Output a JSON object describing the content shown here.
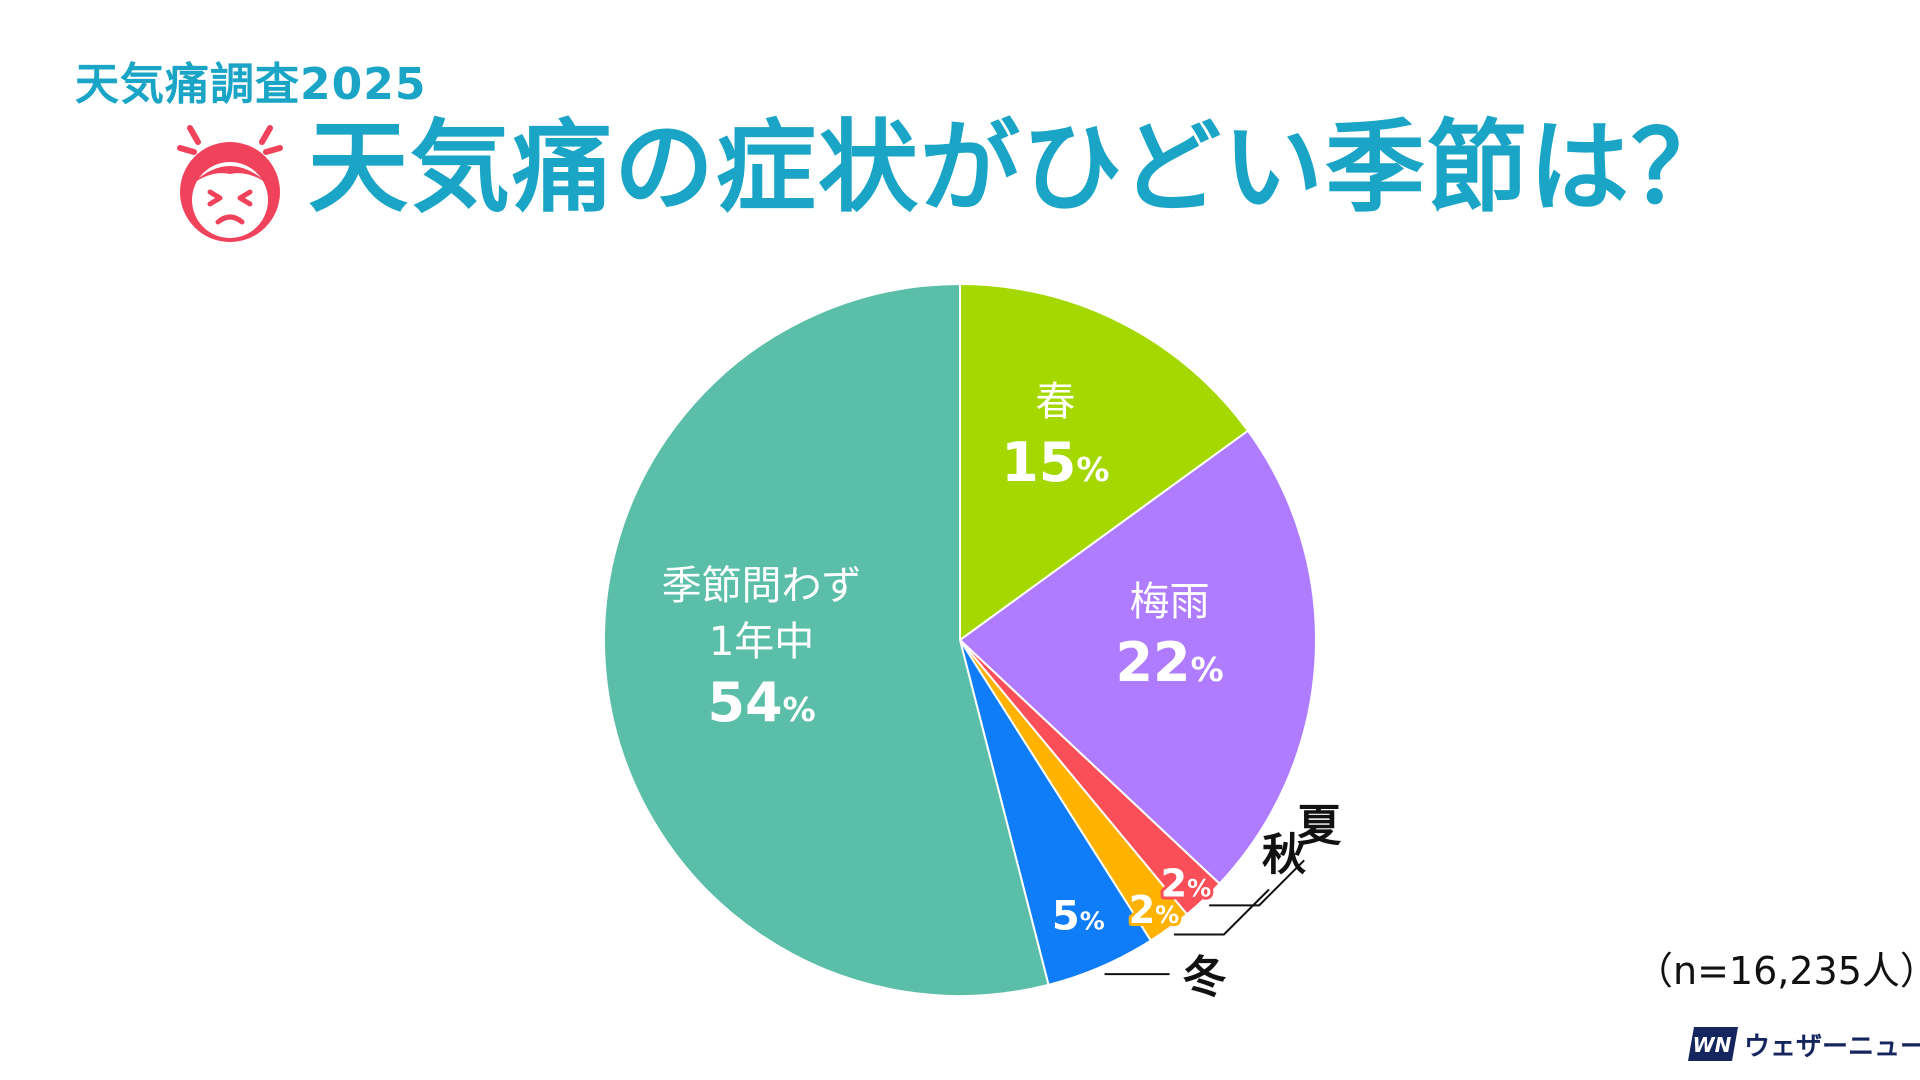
{
  "subtitle": "天気痛調査2025",
  "title": "天気痛の症状がひどい季節は？",
  "sample_size": "（n=16,235人）",
  "brand": {
    "logo_text": "WN",
    "name": "ウェザーニュース"
  },
  "colors": {
    "accent": "#1aa4c6",
    "icon_red": "#f0425a"
  },
  "chart_data": {
    "type": "pie",
    "title": "天気痛の症状がひどい季節は？",
    "slices": [
      {
        "label": "春",
        "value": 15,
        "value_label": "15",
        "color": "#a4d800"
      },
      {
        "label": "梅雨",
        "value": 22,
        "value_label": "22",
        "color": "#b07cff"
      },
      {
        "label": "夏",
        "value": 2,
        "value_label": "2",
        "color": "#fa4f58"
      },
      {
        "label": "秋",
        "value": 2,
        "value_label": "2",
        "color": "#ffb200"
      },
      {
        "label": "冬",
        "value": 5,
        "value_label": "5",
        "color": "#0f7df7"
      },
      {
        "label_lines": [
          "季節問わず",
          "1年中"
        ],
        "value": 54,
        "value_label": "54",
        "color": "#5bbea9"
      }
    ],
    "unit": "%",
    "start_angle_deg": 0,
    "direction": "clockwise"
  }
}
